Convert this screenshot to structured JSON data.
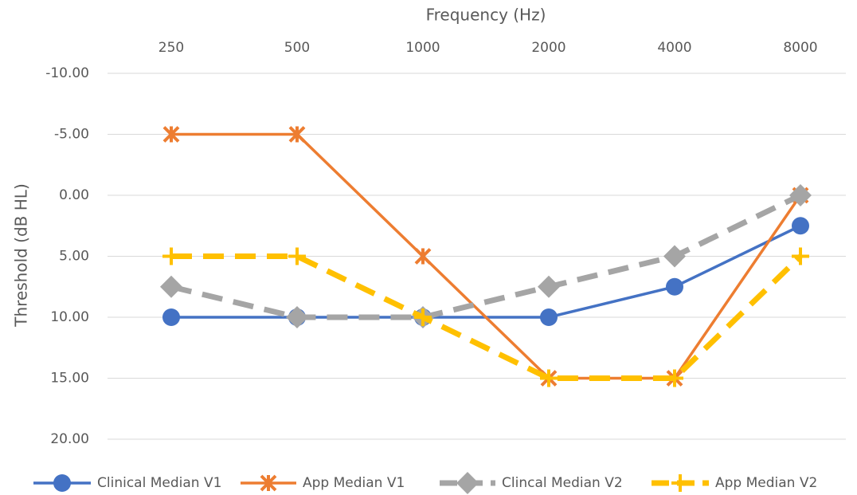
{
  "chart_data": {
    "type": "line",
    "x_label": "Frequency (Hz)",
    "y_label": "Threshold (dB HL)",
    "categories": [
      "250",
      "500",
      "1000",
      "2000",
      "4000",
      "8000"
    ],
    "x_axis_position": "top",
    "ylim": [
      -10,
      20
    ],
    "y_reversed": true,
    "yticks": [
      {
        "value": -10,
        "label": "-10.00"
      },
      {
        "value": -5,
        "label": "-5.00"
      },
      {
        "value": 0,
        "label": "0.00"
      },
      {
        "value": 5,
        "label": "5.00"
      },
      {
        "value": 10,
        "label": "10.00"
      },
      {
        "value": 15,
        "label": "15.00"
      },
      {
        "value": 20,
        "label": "20.00"
      }
    ],
    "grid": true,
    "legend": "bottom",
    "series": [
      {
        "name": "Clinical Median V1",
        "color": "#4472c4",
        "dashed": false,
        "marker": "circle",
        "values": [
          10,
          10,
          10,
          10,
          7.5,
          2.5
        ]
      },
      {
        "name": "App Median V1",
        "color": "#ed7d31",
        "dashed": false,
        "marker": "star",
        "values": [
          -5,
          -5,
          5,
          15,
          15,
          0
        ]
      },
      {
        "name": "Clincal Median V2",
        "color": "#a5a5a5",
        "dashed": true,
        "marker": "diamond",
        "values": [
          7.5,
          10,
          10,
          7.5,
          5,
          0
        ]
      },
      {
        "name": "App Median V2",
        "color": "#ffc000",
        "dashed": true,
        "marker": "plus",
        "values": [
          5,
          5,
          10,
          15,
          15,
          5
        ]
      }
    ]
  }
}
